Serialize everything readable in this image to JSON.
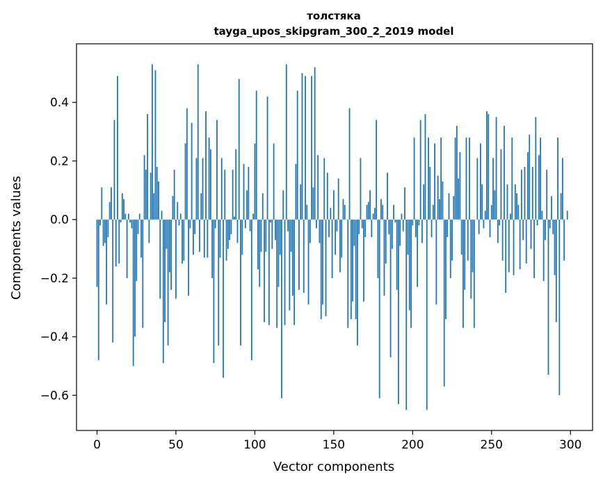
{
  "chart_data": {
    "type": "bar",
    "title": "толстяка",
    "subtitle": "tayga_upos_skipgram_300_2_2019 model",
    "xlabel": "Vector components",
    "ylabel": "Components values",
    "xlim": [
      -13,
      314
    ],
    "ylim": [
      -0.72,
      0.6
    ],
    "xticks": [
      0,
      50,
      100,
      150,
      200,
      250,
      300
    ],
    "yticks": [
      -0.6,
      -0.4,
      -0.2,
      0.0,
      0.2,
      0.4
    ],
    "ytick_labels": [
      "−0.6",
      "−0.4",
      "−0.2",
      "0.0",
      "0.2",
      "0.4"
    ],
    "xtick_labels": [
      "0",
      "50",
      "100",
      "150",
      "200",
      "250",
      "300"
    ],
    "bar_color": "#1f77b4",
    "values": [
      -0.23,
      -0.48,
      -0.02,
      0.11,
      -0.09,
      -0.08,
      -0.29,
      -0.06,
      0.06,
      0.11,
      -0.42,
      0.34,
      -0.16,
      0.49,
      -0.15,
      -0.01,
      0.09,
      0.07,
      0.02,
      -0.2,
      0.02,
      -0.01,
      -0.03,
      -0.5,
      -0.4,
      -0.21,
      -0.05,
      0.02,
      -0.13,
      -0.37,
      0.22,
      0.17,
      0.36,
      -0.08,
      0.16,
      0.53,
      0.09,
      0.51,
      0.18,
      0.13,
      -0.27,
      0.03,
      -0.49,
      -0.35,
      -0.1,
      -0.43,
      -0.18,
      -0.24,
      0.08,
      0.17,
      -0.27,
      0.06,
      -0.02,
      0.02,
      -0.15,
      -0.14,
      0.26,
      0.38,
      -0.26,
      -0.03,
      0.33,
      -0.12,
      -0.05,
      0.21,
      0.53,
      -0.11,
      0.09,
      0.21,
      -0.13,
      0.37,
      -0.13,
      0.28,
      0.24,
      -0.2,
      -0.49,
      -0.03,
      0.34,
      -0.43,
      -0.13,
      0.21,
      -0.54,
      0.17,
      -0.14,
      -0.1,
      -0.07,
      -0.05,
      0.17,
      0.01,
      0.24,
      -0.08,
      0.48,
      -0.43,
      -0.12,
      0.19,
      -0.03,
      0.1,
      0.18,
      -0.04,
      -0.48,
      0.02,
      0.26,
      0.44,
      -0.17,
      -0.23,
      -0.11,
      0.09,
      -0.35,
      -0.11,
      0.42,
      -0.36,
      -0.01,
      -0.1,
      0.26,
      -0.07,
      -0.37,
      -0.23,
      -0.12,
      -0.61,
      0.1,
      -0.36,
      0.53,
      -0.04,
      -0.31,
      -0.11,
      -0.26,
      -0.36,
      0.19,
      0.44,
      -0.24,
      0.12,
      0.5,
      -0.25,
      0.49,
      0.05,
      -0.29,
      -0.08,
      0.49,
      0.11,
      0.52,
      -0.03,
      0.22,
      -0.08,
      -0.34,
      -0.29,
      0.21,
      -0.33,
      0.16,
      -0.06,
      0.04,
      -0.2,
      0.1,
      -0.12,
      -0.04,
      0.14,
      -0.18,
      -0.13,
      0.07,
      0.05,
      0.0,
      -0.37,
      0.38,
      -0.34,
      -0.28,
      -0.09,
      -0.34,
      -0.43,
      -0.05,
      0.21,
      -0.03,
      -0.28,
      -0.06,
      0.05,
      0.06,
      0.1,
      -0.06,
      0.02,
      0.04,
      0.34,
      -0.2,
      -0.61,
      0.07,
      0.05,
      -0.26,
      -0.15,
      0.16,
      -0.05,
      -0.47,
      -0.1,
      0.05,
      -0.01,
      -0.24,
      -0.63,
      -0.09,
      0.02,
      -0.04,
      0.11,
      -0.65,
      -0.12,
      -0.31,
      -0.37,
      -0.02,
      0.28,
      -0.06,
      -0.23,
      -0.02,
      0.34,
      -0.08,
      0.12,
      0.36,
      -0.65,
      0.28,
      0.18,
      -0.06,
      0.05,
      0.26,
      -0.29,
      0.15,
      0.07,
      0.28,
      0.13,
      -0.57,
      -0.34,
      -0.06,
      0.09,
      -0.2,
      -0.14,
      0.08,
      0.28,
      0.32,
      0.14,
      0.23,
      -0.12,
      -0.37,
      -0.24,
      0.28,
      -0.14,
      0.28,
      -0.27,
      -0.18,
      -0.37,
      0.0,
      0.21,
      -0.05,
      0.26,
      0.12,
      -0.03,
      0.03,
      0.37,
      0.36,
      -0.06,
      0.05,
      0.21,
      0.1,
      0.35,
      -0.08,
      -0.02,
      0.24,
      -0.14,
      0.32,
      -0.25,
      0.12,
      -0.18,
      0.02,
      0.28,
      -0.19,
      0.12,
      0.09,
      0.05,
      -0.17,
      0.17,
      -0.07,
      0.18,
      -0.15,
      0.23,
      0.29,
      -0.1,
      0.18,
      -0.2,
      0.35,
      -0.02,
      0.22,
      0.28,
      0.03,
      -0.21,
      -0.07,
      0.17,
      -0.53,
      -0.03,
      0.08,
      -0.05,
      -0.19,
      -0.35,
      0.28,
      -0.6,
      0.09,
      0.21,
      -0.14,
      0.0,
      0.03
    ]
  }
}
